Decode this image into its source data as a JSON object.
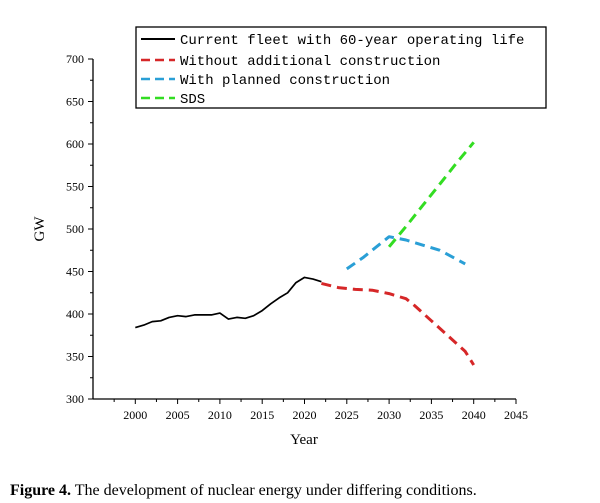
{
  "chart_data": {
    "type": "line",
    "xlabel": "Year",
    "ylabel": "GW",
    "xlim": [
      1995,
      2045
    ],
    "ylim": [
      300,
      700
    ],
    "xticks": [
      2000,
      2005,
      2010,
      2015,
      2020,
      2025,
      2030,
      2035,
      2040,
      2045
    ],
    "yticks": [
      300,
      350,
      400,
      450,
      500,
      550,
      600,
      650,
      700
    ],
    "legend_position": "top-right",
    "series": [
      {
        "name": "Current fleet with 60-year operating life",
        "color": "#000000",
        "style": "solid",
        "x": [
          2000,
          2001,
          2002,
          2003,
          2004,
          2005,
          2006,
          2007,
          2008,
          2009,
          2010,
          2011,
          2012,
          2013,
          2014,
          2015,
          2016,
          2017,
          2018,
          2019,
          2020,
          2021,
          2022
        ],
        "y": [
          384,
          387,
          391,
          392,
          396,
          398,
          397,
          399,
          399,
          399,
          401,
          394,
          396,
          395,
          398,
          404,
          412,
          419,
          425,
          437,
          443,
          441,
          438
        ]
      },
      {
        "name": "Without additional construction",
        "color": "#d62728",
        "style": "dashed",
        "x": [
          2022,
          2024,
          2026,
          2028,
          2030,
          2032,
          2033,
          2035,
          2037,
          2039,
          2040
        ],
        "y": [
          436,
          431,
          429,
          428,
          424,
          418,
          410,
          392,
          374,
          356,
          340
        ]
      },
      {
        "name": "With planned construction",
        "color": "#2a9fd6",
        "style": "dashed",
        "x": [
          2025,
          2027,
          2030,
          2032,
          2034,
          2036,
          2039
        ],
        "y": [
          453,
          467,
          491,
          487,
          481,
          475,
          459
        ]
      },
      {
        "name": "SDS",
        "color": "#33dd22",
        "style": "dashed",
        "x": [
          2030,
          2032,
          2034,
          2036,
          2038,
          2040
        ],
        "y": [
          479,
          503,
          528,
          553,
          578,
          602
        ]
      }
    ]
  },
  "caption": {
    "label": "Figure 4.",
    "text": " The development of nuclear energy under differing conditions."
  }
}
